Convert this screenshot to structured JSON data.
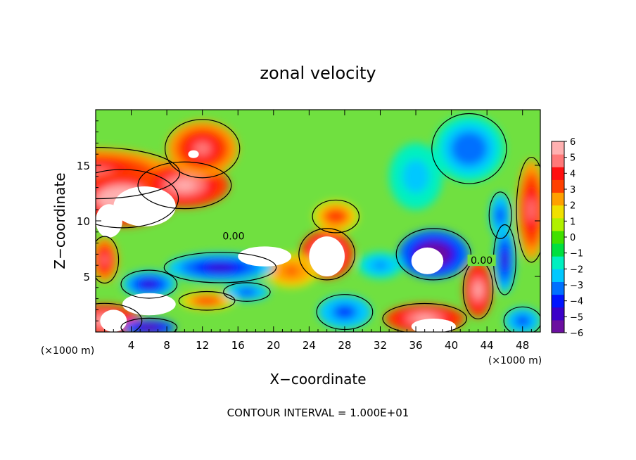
{
  "chart_data": {
    "type": "heatmap",
    "title": "zonal velocity",
    "xlabel": "X−coordinate",
    "ylabel": "Z−coordinate",
    "x_unit_left": "(×1000 m)",
    "x_unit_right": "(×1000 m)",
    "xlim": [
      0,
      50
    ],
    "ylim": [
      0,
      20
    ],
    "x_ticks": [
      4,
      8,
      12,
      16,
      20,
      24,
      28,
      32,
      36,
      40,
      44,
      48
    ],
    "y_ticks": [
      5,
      10,
      15
    ],
    "contour_labels": [
      {
        "text": "0.00",
        "x": 15.5,
        "z": 8.4
      },
      {
        "text": "0.00",
        "x": 43.4,
        "z": 6.2
      }
    ],
    "colorbar": {
      "range": [
        -6,
        6
      ],
      "ticks": [
        6,
        5,
        4,
        3,
        2,
        1,
        0,
        -1,
        -2,
        -3,
        -4,
        -5,
        -6
      ],
      "tick_labels": [
        "6",
        "5",
        "4",
        "3",
        "2",
        "1",
        "0",
        "−1",
        "−2",
        "−3",
        "−4",
        "−5",
        "−6"
      ],
      "colors": [
        "#6b0fa0",
        "#3a00c8",
        "#0014ff",
        "#0070ff",
        "#00c8ff",
        "#00f0c0",
        "#00e040",
        "#40e000",
        "#b0f000",
        "#f0e000",
        "#ffa000",
        "#ff4000",
        "#ff1010",
        "#ff7878",
        "#ffb0b0"
      ]
    },
    "regions": [
      {
        "sign": "pos",
        "x": 0,
        "z": 14.3,
        "rx": 9,
        "rz": 2.2,
        "v": 5.2
      },
      {
        "sign": "pos",
        "x": 3,
        "z": 12.0,
        "rx": 6,
        "rz": 2.5,
        "v": 6.5
      },
      {
        "sign": "pos",
        "x": 10,
        "z": 13.2,
        "rx": 5,
        "rz": 2.0,
        "v": 5.5
      },
      {
        "sign": "pos",
        "x": 12,
        "z": 16.5,
        "rx": 4,
        "rz": 2.5,
        "v": 4.5
      },
      {
        "sign": "pos",
        "x": 26,
        "z": 7.0,
        "rx": 3,
        "rz": 2.2,
        "v": 6.5
      },
      {
        "sign": "pos",
        "x": 22,
        "z": 5.5,
        "rx": 3,
        "rz": 1.5,
        "v": 3.0
      },
      {
        "sign": "pos",
        "x": 27,
        "z": 10.4,
        "rx": 2.5,
        "rz": 1.4,
        "v": 3.5
      },
      {
        "sign": "pos",
        "x": 12.5,
        "z": 2.8,
        "rx": 3,
        "rz": 0.8,
        "v": 3.5
      },
      {
        "sign": "pos",
        "x": 43,
        "z": 3.8,
        "rx": 1.6,
        "rz": 2.5,
        "v": 5.5
      },
      {
        "sign": "pos",
        "x": 49,
        "z": 11.0,
        "rx": 1.6,
        "rz": 4.5,
        "v": 5.0
      },
      {
        "sign": "pos",
        "x": 37,
        "z": 1.2,
        "rx": 4.5,
        "rz": 1.3,
        "v": 5.5
      },
      {
        "sign": "pos",
        "x": 1,
        "z": 6.5,
        "rx": 1.5,
        "rz": 2.0,
        "v": 5.0
      },
      {
        "sign": "pos",
        "x": 1,
        "z": 1.0,
        "rx": 4,
        "rz": 1.5,
        "v": 5.5
      },
      {
        "sign": "neg",
        "x": 6,
        "z": 4.3,
        "rx": 3,
        "rz": 1.2,
        "v": -5.0
      },
      {
        "sign": "neg",
        "x": 14,
        "z": 5.8,
        "rx": 6,
        "rz": 1.3,
        "v": -5.0
      },
      {
        "sign": "neg",
        "x": 17,
        "z": 3.6,
        "rx": 2.5,
        "rz": 0.8,
        "v": -4.0
      },
      {
        "sign": "neg",
        "x": 38,
        "z": 7.0,
        "rx": 4,
        "rz": 2.2,
        "v": -6.5
      },
      {
        "sign": "neg",
        "x": 42,
        "z": 16.5,
        "rx": 4,
        "rz": 3,
        "v": -3.5
      },
      {
        "sign": "neg",
        "x": 36,
        "z": 14.0,
        "rx": 3,
        "rz": 3,
        "v": -2.5
      },
      {
        "sign": "neg",
        "x": 46,
        "z": 6.5,
        "rx": 1.2,
        "rz": 3,
        "v": -5.0
      },
      {
        "sign": "neg",
        "x": 45.5,
        "z": 10.5,
        "rx": 1.2,
        "rz": 2.0,
        "v": -4.0
      },
      {
        "sign": "neg",
        "x": 28,
        "z": 1.8,
        "rx": 3,
        "rz": 1.5,
        "v": -4.0
      },
      {
        "sign": "neg",
        "x": 32,
        "z": 6.0,
        "rx": 2.5,
        "rz": 1.2,
        "v": -3.0
      },
      {
        "sign": "neg",
        "x": 6,
        "z": 0.4,
        "rx": 3,
        "rz": 0.8,
        "v": -5.5
      },
      {
        "sign": "neg",
        "x": 48,
        "z": 1.0,
        "rx": 2,
        "rz": 1.2,
        "v": -4.0
      }
    ],
    "white_regions": [
      {
        "x": 5.5,
        "z": 11.3,
        "rx": 3.5,
        "rz": 1.8
      },
      {
        "x": 1.5,
        "z": 10.0,
        "rx": 1.5,
        "rz": 1.5
      },
      {
        "x": 19,
        "z": 6.8,
        "rx": 3,
        "rz": 0.9
      },
      {
        "x": 26,
        "z": 6.8,
        "rx": 2.0,
        "rz": 1.8
      },
      {
        "x": 37.3,
        "z": 6.4,
        "rx": 1.8,
        "rz": 1.2
      },
      {
        "x": 11,
        "z": 16.0,
        "rx": 0.6,
        "rz": 0.35
      },
      {
        "x": 6,
        "z": 2.5,
        "rx": 3,
        "rz": 1.0
      },
      {
        "x": 2,
        "z": 1.0,
        "rx": 1.5,
        "rz": 1.0
      },
      {
        "x": 38,
        "z": 0.5,
        "rx": 2.5,
        "rz": 0.7
      }
    ],
    "annotation": "CONTOUR INTERVAL = 1.000E+01"
  }
}
